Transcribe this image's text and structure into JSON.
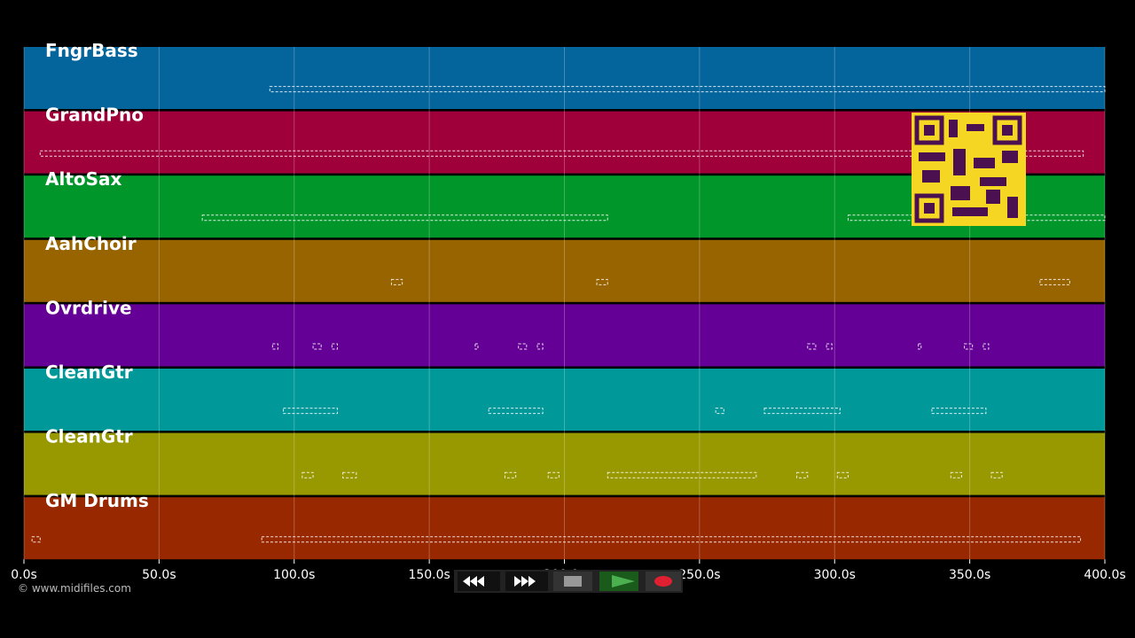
{
  "copyright": "© www.midifiles.com",
  "time_axis": {
    "xlim": [
      0,
      400
    ],
    "xticks": [
      {
        "value": 0,
        "label": "0.0s"
      },
      {
        "value": 50,
        "label": "50.0s"
      },
      {
        "value": 100,
        "label": "100.0s"
      },
      {
        "value": 150,
        "label": "150.0s"
      },
      {
        "value": 200,
        "label": "200.0s"
      },
      {
        "value": 250,
        "label": "250.0s"
      },
      {
        "value": 300,
        "label": "300.0s"
      },
      {
        "value": 350,
        "label": "350.0s"
      },
      {
        "value": 400,
        "label": "400.0s"
      }
    ]
  },
  "tracks": [
    {
      "name": "FngrBass",
      "color": "#04649c",
      "segments": [
        [
          91,
          400
        ]
      ]
    },
    {
      "name": "GrandPno",
      "color": "#a0003a",
      "segments": [
        [
          6,
          392
        ]
      ]
    },
    {
      "name": "AltoSax",
      "color": "#00962a",
      "segments": [
        [
          66,
          216
        ],
        [
          305,
          400
        ]
      ]
    },
    {
      "name": "AahChoir",
      "color": "#986400",
      "segments": [
        [
          136,
          140
        ],
        [
          212,
          216
        ],
        [
          376,
          387
        ]
      ]
    },
    {
      "name": "Ovrdrive",
      "color": "#640096",
      "segments": [
        [
          92,
          94
        ],
        [
          107,
          110
        ],
        [
          114,
          116
        ],
        [
          167,
          168
        ],
        [
          183,
          186
        ],
        [
          190,
          192
        ],
        [
          290,
          293
        ],
        [
          297,
          299
        ],
        [
          331,
          332
        ],
        [
          348,
          351
        ],
        [
          355,
          357
        ]
      ]
    },
    {
      "name": "CleanGtr",
      "color": "#009898",
      "segments": [
        [
          96,
          116
        ],
        [
          172,
          192
        ],
        [
          256,
          259
        ],
        [
          274,
          302
        ],
        [
          336,
          356
        ]
      ]
    },
    {
      "name": "CleanGtr",
      "color": "#989800",
      "segments": [
        [
          103,
          107
        ],
        [
          118,
          123
        ],
        [
          178,
          182
        ],
        [
          194,
          198
        ],
        [
          216,
          271
        ],
        [
          286,
          290
        ],
        [
          301,
          305
        ],
        [
          343,
          347
        ],
        [
          358,
          362
        ]
      ]
    },
    {
      "name": "GM Drums",
      "color": "#982800",
      "segments": [
        [
          3,
          6
        ],
        [
          88,
          391
        ]
      ]
    }
  ]
}
